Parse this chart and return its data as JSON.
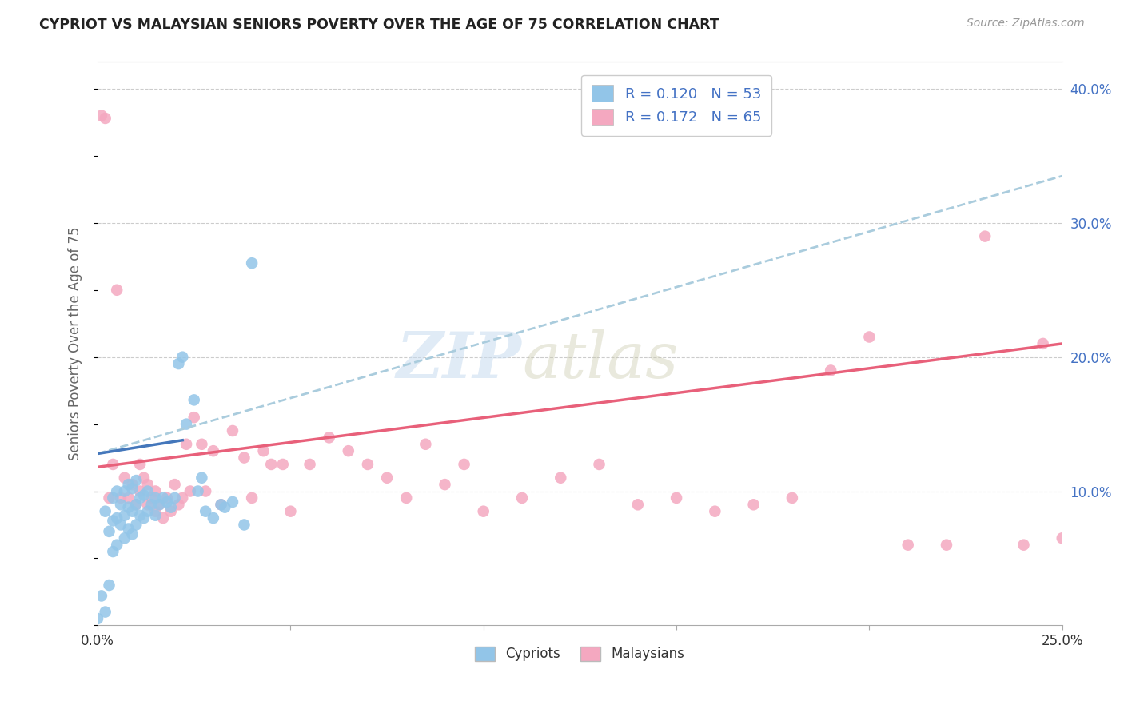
{
  "title": "CYPRIOT VS MALAYSIAN SENIORS POVERTY OVER THE AGE OF 75 CORRELATION CHART",
  "source": "Source: ZipAtlas.com",
  "ylabel": "Seniors Poverty Over the Age of 75",
  "x_min": 0.0,
  "x_max": 0.25,
  "y_min": 0.0,
  "y_max": 0.42,
  "color_cypriot": "#92C5E8",
  "color_malaysian": "#F4A8C0",
  "color_trend_cypriot": "#AACCDD",
  "color_trend_malaysian": "#E8607A",
  "cypriot_x": [
    0.0,
    0.001,
    0.002,
    0.002,
    0.003,
    0.003,
    0.004,
    0.004,
    0.004,
    0.005,
    0.005,
    0.005,
    0.006,
    0.006,
    0.007,
    0.007,
    0.007,
    0.008,
    0.008,
    0.008,
    0.009,
    0.009,
    0.009,
    0.01,
    0.01,
    0.01,
    0.011,
    0.011,
    0.012,
    0.012,
    0.013,
    0.013,
    0.014,
    0.015,
    0.015,
    0.016,
    0.017,
    0.018,
    0.019,
    0.02,
    0.021,
    0.022,
    0.023,
    0.025,
    0.026,
    0.027,
    0.028,
    0.03,
    0.032,
    0.033,
    0.035,
    0.038,
    0.04
  ],
  "cypriot_y": [
    0.005,
    0.022,
    0.01,
    0.085,
    0.03,
    0.07,
    0.055,
    0.078,
    0.095,
    0.06,
    0.08,
    0.1,
    0.075,
    0.09,
    0.065,
    0.082,
    0.1,
    0.072,
    0.088,
    0.105,
    0.068,
    0.085,
    0.102,
    0.075,
    0.09,
    0.108,
    0.082,
    0.095,
    0.08,
    0.097,
    0.085,
    0.1,
    0.09,
    0.082,
    0.095,
    0.09,
    0.095,
    0.092,
    0.088,
    0.095,
    0.195,
    0.2,
    0.15,
    0.168,
    0.1,
    0.11,
    0.085,
    0.08,
    0.09,
    0.088,
    0.092,
    0.075,
    0.27
  ],
  "malaysian_x": [
    0.001,
    0.002,
    0.003,
    0.004,
    0.005,
    0.006,
    0.007,
    0.008,
    0.009,
    0.01,
    0.011,
    0.011,
    0.012,
    0.013,
    0.013,
    0.014,
    0.015,
    0.015,
    0.016,
    0.017,
    0.018,
    0.019,
    0.02,
    0.021,
    0.022,
    0.023,
    0.024,
    0.025,
    0.027,
    0.028,
    0.03,
    0.032,
    0.035,
    0.038,
    0.04,
    0.043,
    0.045,
    0.048,
    0.05,
    0.055,
    0.06,
    0.065,
    0.07,
    0.075,
    0.08,
    0.085,
    0.09,
    0.095,
    0.1,
    0.11,
    0.12,
    0.13,
    0.14,
    0.15,
    0.16,
    0.17,
    0.18,
    0.19,
    0.2,
    0.21,
    0.22,
    0.23,
    0.24,
    0.245,
    0.25
  ],
  "malaysian_y": [
    0.38,
    0.378,
    0.095,
    0.12,
    0.25,
    0.095,
    0.11,
    0.095,
    0.105,
    0.09,
    0.1,
    0.12,
    0.11,
    0.09,
    0.105,
    0.095,
    0.085,
    0.1,
    0.09,
    0.08,
    0.095,
    0.085,
    0.105,
    0.09,
    0.095,
    0.135,
    0.1,
    0.155,
    0.135,
    0.1,
    0.13,
    0.09,
    0.145,
    0.125,
    0.095,
    0.13,
    0.12,
    0.12,
    0.085,
    0.12,
    0.14,
    0.13,
    0.12,
    0.11,
    0.095,
    0.135,
    0.105,
    0.12,
    0.085,
    0.095,
    0.11,
    0.12,
    0.09,
    0.095,
    0.085,
    0.09,
    0.095,
    0.19,
    0.215,
    0.06,
    0.06,
    0.29,
    0.06,
    0.21,
    0.065
  ]
}
